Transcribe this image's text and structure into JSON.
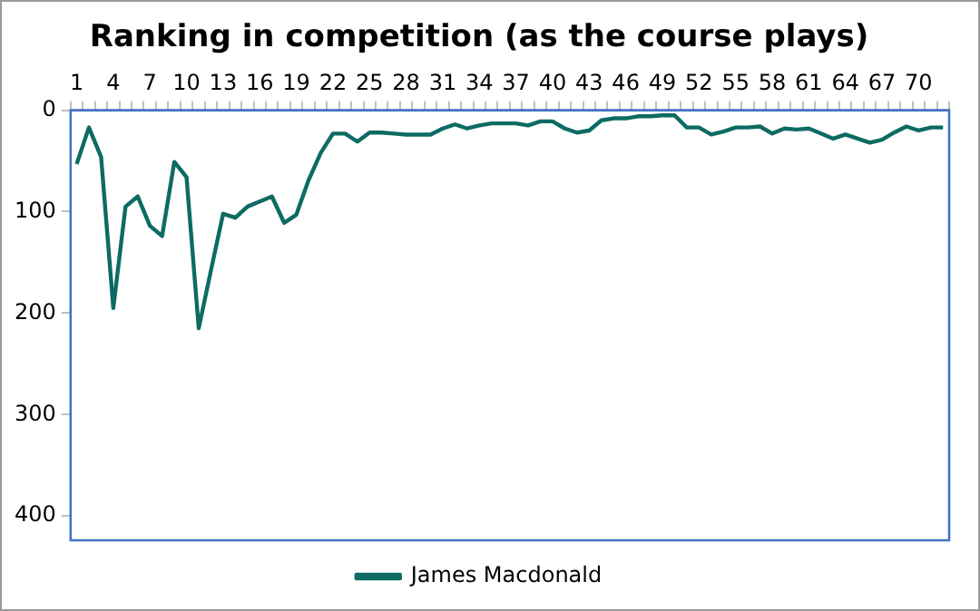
{
  "chart_data": {
    "type": "line",
    "title": "Ranking in competition (as the course plays)",
    "categories": [
      "1",
      null,
      null,
      "4",
      null,
      null,
      "7",
      null,
      null,
      "10",
      null,
      null,
      "13",
      null,
      null,
      "16",
      null,
      null,
      "19",
      null,
      null,
      "22",
      null,
      null,
      "25",
      null,
      null,
      "28",
      null,
      null,
      "31",
      null,
      null,
      "34",
      null,
      null,
      "37",
      null,
      null,
      "40",
      null,
      null,
      "43",
      null,
      null,
      "46",
      null,
      null,
      "49",
      null,
      null,
      "52",
      null,
      null,
      "55",
      null,
      null,
      "58",
      null,
      null,
      "61",
      null,
      null,
      "64",
      null,
      null,
      "67",
      null,
      null,
      "70",
      null,
      null
    ],
    "series": [
      {
        "name": "James Macdonald",
        "color": "#0d6b63",
        "values": [
          53,
          17,
          46,
          195,
          95,
          85,
          114,
          124,
          51,
          66,
          215,
          158,
          102,
          106,
          95,
          90,
          85,
          111,
          103,
          69,
          42,
          23,
          23,
          31,
          22,
          22,
          23,
          24,
          24,
          24,
          18,
          14,
          18,
          15,
          13,
          13,
          13,
          15,
          11,
          11,
          18,
          22,
          20,
          10,
          8,
          8,
          6,
          6,
          5,
          5,
          17,
          17,
          24,
          21,
          17,
          17,
          16,
          23,
          18,
          19,
          18,
          23,
          28,
          24,
          28,
          32,
          29,
          22,
          16,
          20,
          17,
          17
        ]
      }
    ],
    "ylim": [
      424,
      0
    ],
    "yticks": [
      0,
      100,
      200,
      300,
      400
    ],
    "grid": false,
    "legend": "bottom",
    "marker": "none",
    "line_style": "solid"
  }
}
